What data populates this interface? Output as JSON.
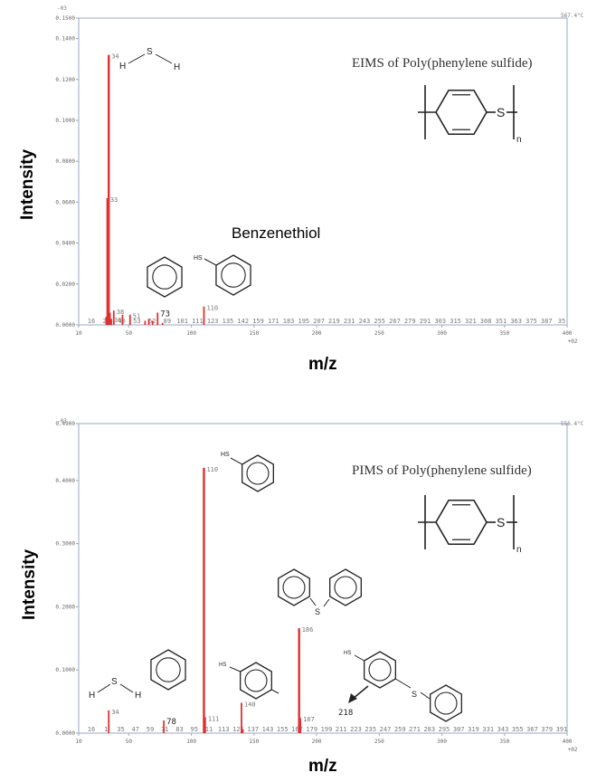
{
  "chart_data": [
    {
      "type": "bar",
      "title": "EIMS of Poly(phenylene sulfide)",
      "xlabel": "m/z",
      "ylabel": "Intensity",
      "xlim": [
        10,
        400
      ],
      "ylim": [
        0,
        0.15
      ],
      "corner_left": "-03",
      "corner_right": "567.4°C",
      "x_axis_end_label": "+02",
      "yticks": [
        "0.0000",
        "0.0200",
        "0.0400",
        "0.0600",
        "0.0800",
        "0.1000",
        "0.1200",
        "0.1400",
        "0.1500"
      ],
      "ytick_values": [
        0,
        0.02,
        0.04,
        0.06,
        0.08,
        0.1,
        0.12,
        0.14,
        0.15
      ],
      "xticks": [
        "10",
        "50",
        "100",
        "150",
        "200",
        "250",
        "300",
        "350",
        "400"
      ],
      "xtick_values": [
        10,
        50,
        100,
        150,
        200,
        250,
        300,
        350,
        400
      ],
      "peaks": [
        {
          "mz": 32,
          "value": 0.004
        },
        {
          "mz": 33,
          "value": 0.062,
          "label": "33"
        },
        {
          "mz": 34,
          "value": 0.132,
          "label": "34"
        },
        {
          "mz": 35,
          "value": 0.006
        },
        {
          "mz": 36,
          "value": 0.003,
          "label": "36"
        },
        {
          "mz": 38,
          "value": 0.007,
          "label": "38"
        },
        {
          "mz": 45,
          "value": 0.005
        },
        {
          "mz": 51,
          "value": 0.005,
          "label": "51"
        },
        {
          "mz": 63,
          "value": 0.002
        },
        {
          "mz": 66,
          "value": 0.003
        },
        {
          "mz": 69,
          "value": 0.002
        },
        {
          "mz": 73,
          "value": 0.006,
          "label": "73"
        },
        {
          "mz": 77,
          "value": 0.001
        },
        {
          "mz": 110,
          "value": 0.009,
          "label": "110"
        }
      ],
      "baseline_labels": [
        "16",
        "28",
        "40",
        "53",
        "62",
        "89",
        "101",
        "111",
        "123",
        "135",
        "142",
        "159",
        "171",
        "183",
        "195",
        "207",
        "219",
        "231",
        "243",
        "255",
        "267",
        "279",
        "291",
        "303",
        "315",
        "321",
        "308",
        "351",
        "363",
        "375",
        "387",
        "35"
      ],
      "annotation": "Benzenethiol",
      "structure_labels": {
        "h": "H",
        "s": "S",
        "hs": "HS",
        "n": "n"
      }
    },
    {
      "type": "bar",
      "title": "PIMS of Poly(phenylene sulfide)",
      "xlabel": "m/z",
      "ylabel": "Intensity",
      "xlim": [
        10,
        400
      ],
      "ylim": [
        0,
        0.49
      ],
      "corner_left": "-03",
      "corner_right": "556.4°C",
      "x_axis_end_label": "+02",
      "yticks": [
        "0.0000",
        "0.1000",
        "0.2000",
        "0.3000",
        "0.4000",
        "0.4900"
      ],
      "ytick_values": [
        0,
        0.1,
        0.2,
        0.3,
        0.4,
        0.49
      ],
      "xticks": [
        "10",
        "50",
        "100",
        "150",
        "200",
        "250",
        "300",
        "350",
        "400"
      ],
      "xtick_values": [
        10,
        50,
        100,
        150,
        200,
        250,
        300,
        350,
        400
      ],
      "peaks": [
        {
          "mz": 34,
          "value": 0.036,
          "label": "34"
        },
        {
          "mz": 78,
          "value": 0.02,
          "label": "78"
        },
        {
          "mz": 110,
          "value": 0.42,
          "label": "110"
        },
        {
          "mz": 111,
          "value": 0.025,
          "label": "111"
        },
        {
          "mz": 140,
          "value": 0.048,
          "label": "140"
        },
        {
          "mz": 141,
          "value": 0.006
        },
        {
          "mz": 186,
          "value": 0.166,
          "label": "186"
        },
        {
          "mz": 187,
          "value": 0.024,
          "label": "187"
        }
      ],
      "baseline_labels": [
        "16",
        "1",
        "35",
        "47",
        "59",
        "71",
        "83",
        "95",
        "11",
        "113",
        "125",
        "137",
        "143",
        "155",
        "167",
        "179",
        "199",
        "211",
        "223",
        "235",
        "247",
        "259",
        "271",
        "283",
        "295",
        "307",
        "319",
        "331",
        "343",
        "355",
        "367",
        "379",
        "391"
      ],
      "arrow_label": "218",
      "structure_labels": {
        "h": "H",
        "s": "S",
        "hs": "HS",
        "n": "n"
      }
    }
  ],
  "colors": {
    "peak": "#e03030",
    "axis": "#9aa8c8",
    "structure": "#222222"
  }
}
